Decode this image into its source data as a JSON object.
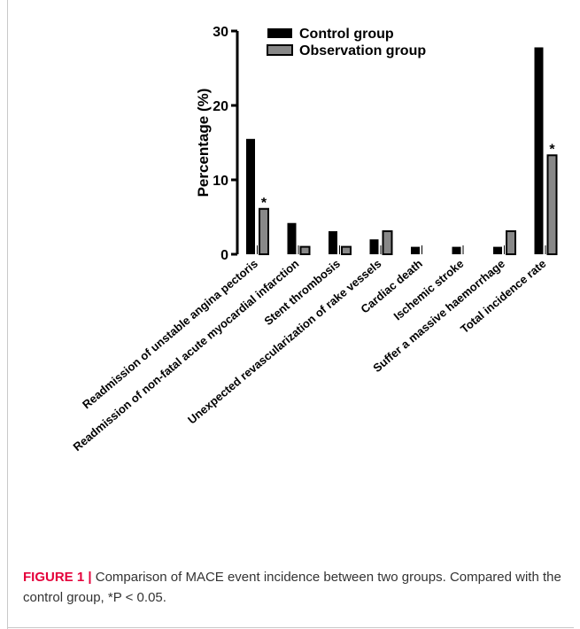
{
  "chart_data": {
    "type": "bar",
    "ylabel": "Percentage (%)",
    "xlabel": "",
    "ylim": [
      0,
      30
    ],
    "yticks": [
      "0",
      "10",
      "20",
      "30"
    ],
    "legend_position": "top-left",
    "categories": [
      "Readmission of unstable angina pectoris",
      "Readmission of non-fatal acute myocardial infarction",
      "Stent thrombosis",
      "Unexpected revascularization of rake vessels",
      "Cardiac death",
      "Ischemic stroke",
      "Suffer a massive haemorrhage",
      "Total incidence rate"
    ],
    "series": [
      {
        "name": "Control group",
        "color": "#000000",
        "values": [
          15.5,
          4.2,
          3.1,
          2.0,
          1.0,
          1.0,
          1.0,
          27.8
        ]
      },
      {
        "name": "Observation group",
        "color": "#888888",
        "values": [
          6.1,
          1.0,
          1.0,
          3.1,
          0,
          0,
          3.1,
          13.3
        ]
      }
    ],
    "significance_marker": "*",
    "significant_categories": [
      0,
      7
    ]
  },
  "caption": {
    "title": "FIGURE 1",
    "separator": "|",
    "text": "Comparison of MACE event incidence between two groups. Compared with the control group, *P < 0.05."
  }
}
